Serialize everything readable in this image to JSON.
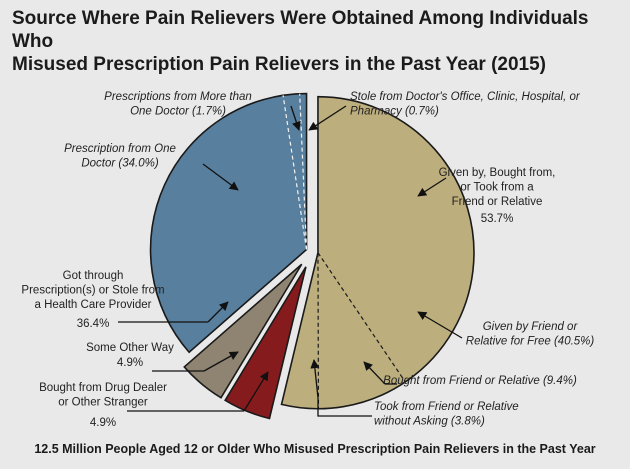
{
  "title": {
    "line1": "Source Where Pain Relievers Were Obtained Among Individuals Who",
    "line2": "Misused Prescription Pain Relievers in the Past Year (2015)"
  },
  "caption": "12.5 Million People Aged 12 or Older Who Misused Prescription Pain Relievers in the Past Year",
  "colors": {
    "friend_relative": "#bdae7e",
    "prescription": "#587f9e",
    "other": "#8f8472",
    "drug_dealer": "#861b1e",
    "background": "#e9e9e9",
    "outline": "#1a1a1a"
  },
  "chart_data": {
    "type": "pie",
    "slices": [
      {
        "key": "friend_relative",
        "label": [
          "Given by, Bought from,",
          "or Took from a",
          "Friend or Relative"
        ],
        "value_label": "53.7%",
        "value": 53.7,
        "color_key": "friend_relative",
        "subslices": [
          {
            "label": [
              "Given by Friend or",
              "Relative for Free (40.5%)"
            ],
            "value": 40.5
          },
          {
            "label": [
              "Bought from Friend or Relative (9.4%)"
            ],
            "value": 9.4
          },
          {
            "label": [
              "Took from Friend or Relative",
              "without Asking (3.8%)"
            ],
            "value": 3.8
          }
        ]
      },
      {
        "key": "drug_dealer",
        "label": [
          "Bought from Drug Dealer",
          "or Other Stranger"
        ],
        "value_label": "4.9%",
        "value": 4.9,
        "color_key": "drug_dealer"
      },
      {
        "key": "other",
        "label": [
          "Some Other Way"
        ],
        "value_label": "4.9%",
        "value": 4.9,
        "color_key": "other"
      },
      {
        "key": "prescription",
        "label": [
          "Got through",
          "Prescription(s) or Stole from",
          "a Health Care Provider"
        ],
        "value_label": "36.4%",
        "value": 36.4,
        "color_key": "prescription",
        "subslices": [
          {
            "label": [
              "Prescription from One",
              "Doctor (34.0%)"
            ],
            "value": 34.0
          },
          {
            "label": [
              "Prescriptions from More than",
              "One Doctor (1.7%)"
            ],
            "value": 1.7
          },
          {
            "label": [
              "Stole from Doctor's Office, Clinic, Hospital, or",
              "Pharmacy (0.7%)"
            ],
            "value": 0.7
          }
        ]
      }
    ]
  }
}
